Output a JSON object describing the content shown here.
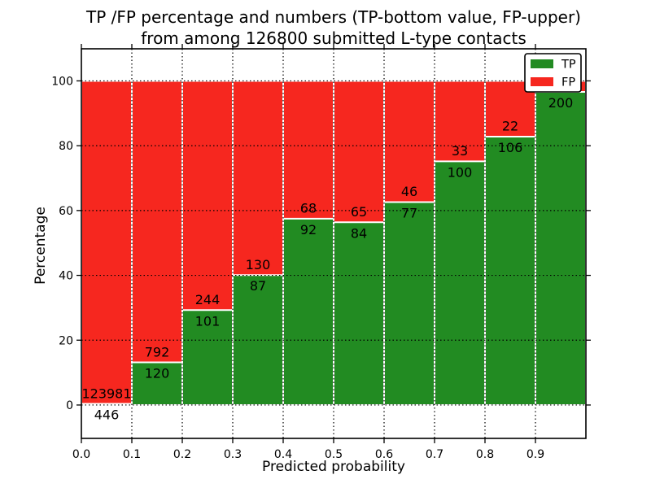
{
  "figure": {
    "title_line1": "TP /FP percentage and numbers (TP-bottom value, FP-upper)",
    "title_line2": "from among 126800 submitted L-type contacts"
  },
  "chart_data": {
    "type": "bar",
    "stacked": true,
    "title": "TP /FP percentage and numbers (TP-bottom value, FP-upper)\nfrom among 126800 submitted L-type contacts",
    "xlabel": "Predicted probability",
    "ylabel": "Percentage",
    "total_submitted": 126800,
    "xlim": [
      0.0,
      1.0
    ],
    "ylim": [
      -10.3,
      109.9
    ],
    "grid": true,
    "x_tick_labels": [
      "0.0",
      "0.1",
      "0.2",
      "0.3",
      "0.4",
      "0.5",
      "0.6",
      "0.7",
      "0.8",
      "0.9"
    ],
    "y_tick_labels": [
      "0",
      "20",
      "40",
      "60",
      "80",
      "100"
    ],
    "y_ticks": [
      0,
      20,
      40,
      60,
      80,
      100
    ],
    "legend": {
      "position": "upper right",
      "entries": [
        {
          "label": "TP",
          "color": "#228b22"
        },
        {
          "label": "FP",
          "color": "#f6271f"
        }
      ]
    },
    "colors": {
      "tp": "#228b22",
      "fp": "#f6271f",
      "bar_edge": "#ffffff",
      "grid": "#000000"
    },
    "bars": [
      {
        "x0": 0.0,
        "x1": 0.1,
        "tp_count": 446,
        "fp_count": 123981,
        "tp_pct": 0.36
      },
      {
        "x0": 0.1,
        "x1": 0.2,
        "tp_count": 120,
        "fp_count": 792,
        "tp_pct": 13.16
      },
      {
        "x0": 0.2,
        "x1": 0.3,
        "tp_count": 101,
        "fp_count": 244,
        "tp_pct": 29.28
      },
      {
        "x0": 0.3,
        "x1": 0.4,
        "tp_count": 87,
        "fp_count": 130,
        "tp_pct": 40.09
      },
      {
        "x0": 0.4,
        "x1": 0.5,
        "tp_count": 92,
        "fp_count": 68,
        "tp_pct": 57.5
      },
      {
        "x0": 0.5,
        "x1": 0.6,
        "tp_count": 84,
        "fp_count": 65,
        "tp_pct": 56.38
      },
      {
        "x0": 0.6,
        "x1": 0.7,
        "tp_count": 77,
        "fp_count": 46,
        "tp_pct": 62.6
      },
      {
        "x0": 0.7,
        "x1": 0.8,
        "tp_count": 100,
        "fp_count": 33,
        "tp_pct": 75.19
      },
      {
        "x0": 0.8,
        "x1": 0.9,
        "tp_count": 106,
        "fp_count": 22,
        "tp_pct": 82.81
      },
      {
        "x0": 0.9,
        "x1": 1.0,
        "tp_count": 200,
        "fp_count": null,
        "tp_pct": 96.6
      }
    ]
  }
}
